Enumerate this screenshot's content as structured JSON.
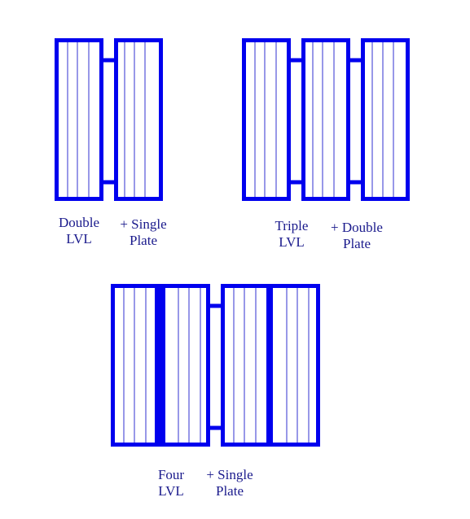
{
  "colors": {
    "member": "#0000ee",
    "label": "#1a1a8c",
    "background": "#ffffff"
  },
  "assemblies": [
    {
      "id": "double",
      "lvl_label": [
        "Double",
        "LVL"
      ],
      "plate_label": [
        "+ Single",
        "Plate"
      ],
      "lvl_count": 2,
      "plate_count": 1
    },
    {
      "id": "triple",
      "lvl_label": [
        "Triple",
        "LVL"
      ],
      "plate_label": [
        "+ Double",
        "Plate"
      ],
      "lvl_count": 3,
      "plate_count": 2
    },
    {
      "id": "four",
      "lvl_label": [
        "Four",
        "LVL"
      ],
      "plate_label": [
        "+ Single",
        "Plate"
      ],
      "lvl_count": 4,
      "plate_count": 1
    }
  ]
}
